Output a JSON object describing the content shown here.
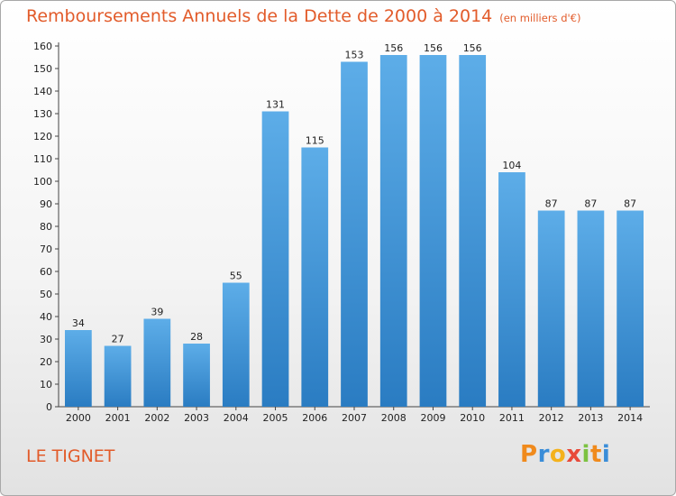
{
  "title": "Remboursements Annuels de la Dette de 2000 à 2014",
  "unit": "(en milliers d'€)",
  "place": "LE TIGNET",
  "brand": {
    "letters": [
      "P",
      "r",
      "o",
      "x",
      "i",
      "t",
      "i"
    ],
    "colors": [
      "#f08a1c",
      "#3a8dd8",
      "#f4b21c",
      "#e84a3a",
      "#7cc242",
      "#f08a1c",
      "#3a8dd8"
    ]
  },
  "colors": {
    "bar_top": "#5dade8",
    "bar_bottom": "#2a7cc2",
    "title": "#e25b2a"
  },
  "chart_data": {
    "type": "bar",
    "categories": [
      "2000",
      "2001",
      "2002",
      "2003",
      "2004",
      "2005",
      "2006",
      "2007",
      "2008",
      "2009",
      "2010",
      "2011",
      "2012",
      "2013",
      "2014"
    ],
    "values": [
      34,
      27,
      39,
      28,
      55,
      131,
      115,
      153,
      156,
      156,
      156,
      104,
      87,
      87,
      87
    ],
    "title": "Remboursements Annuels de la Dette de 2000 à 2014",
    "xlabel": "",
    "ylabel": "",
    "ylim": [
      0,
      160
    ],
    "yticks": [
      0,
      10,
      20,
      30,
      40,
      50,
      60,
      70,
      80,
      90,
      100,
      110,
      120,
      130,
      140,
      150,
      160
    ],
    "grid": false,
    "legend": "none"
  }
}
